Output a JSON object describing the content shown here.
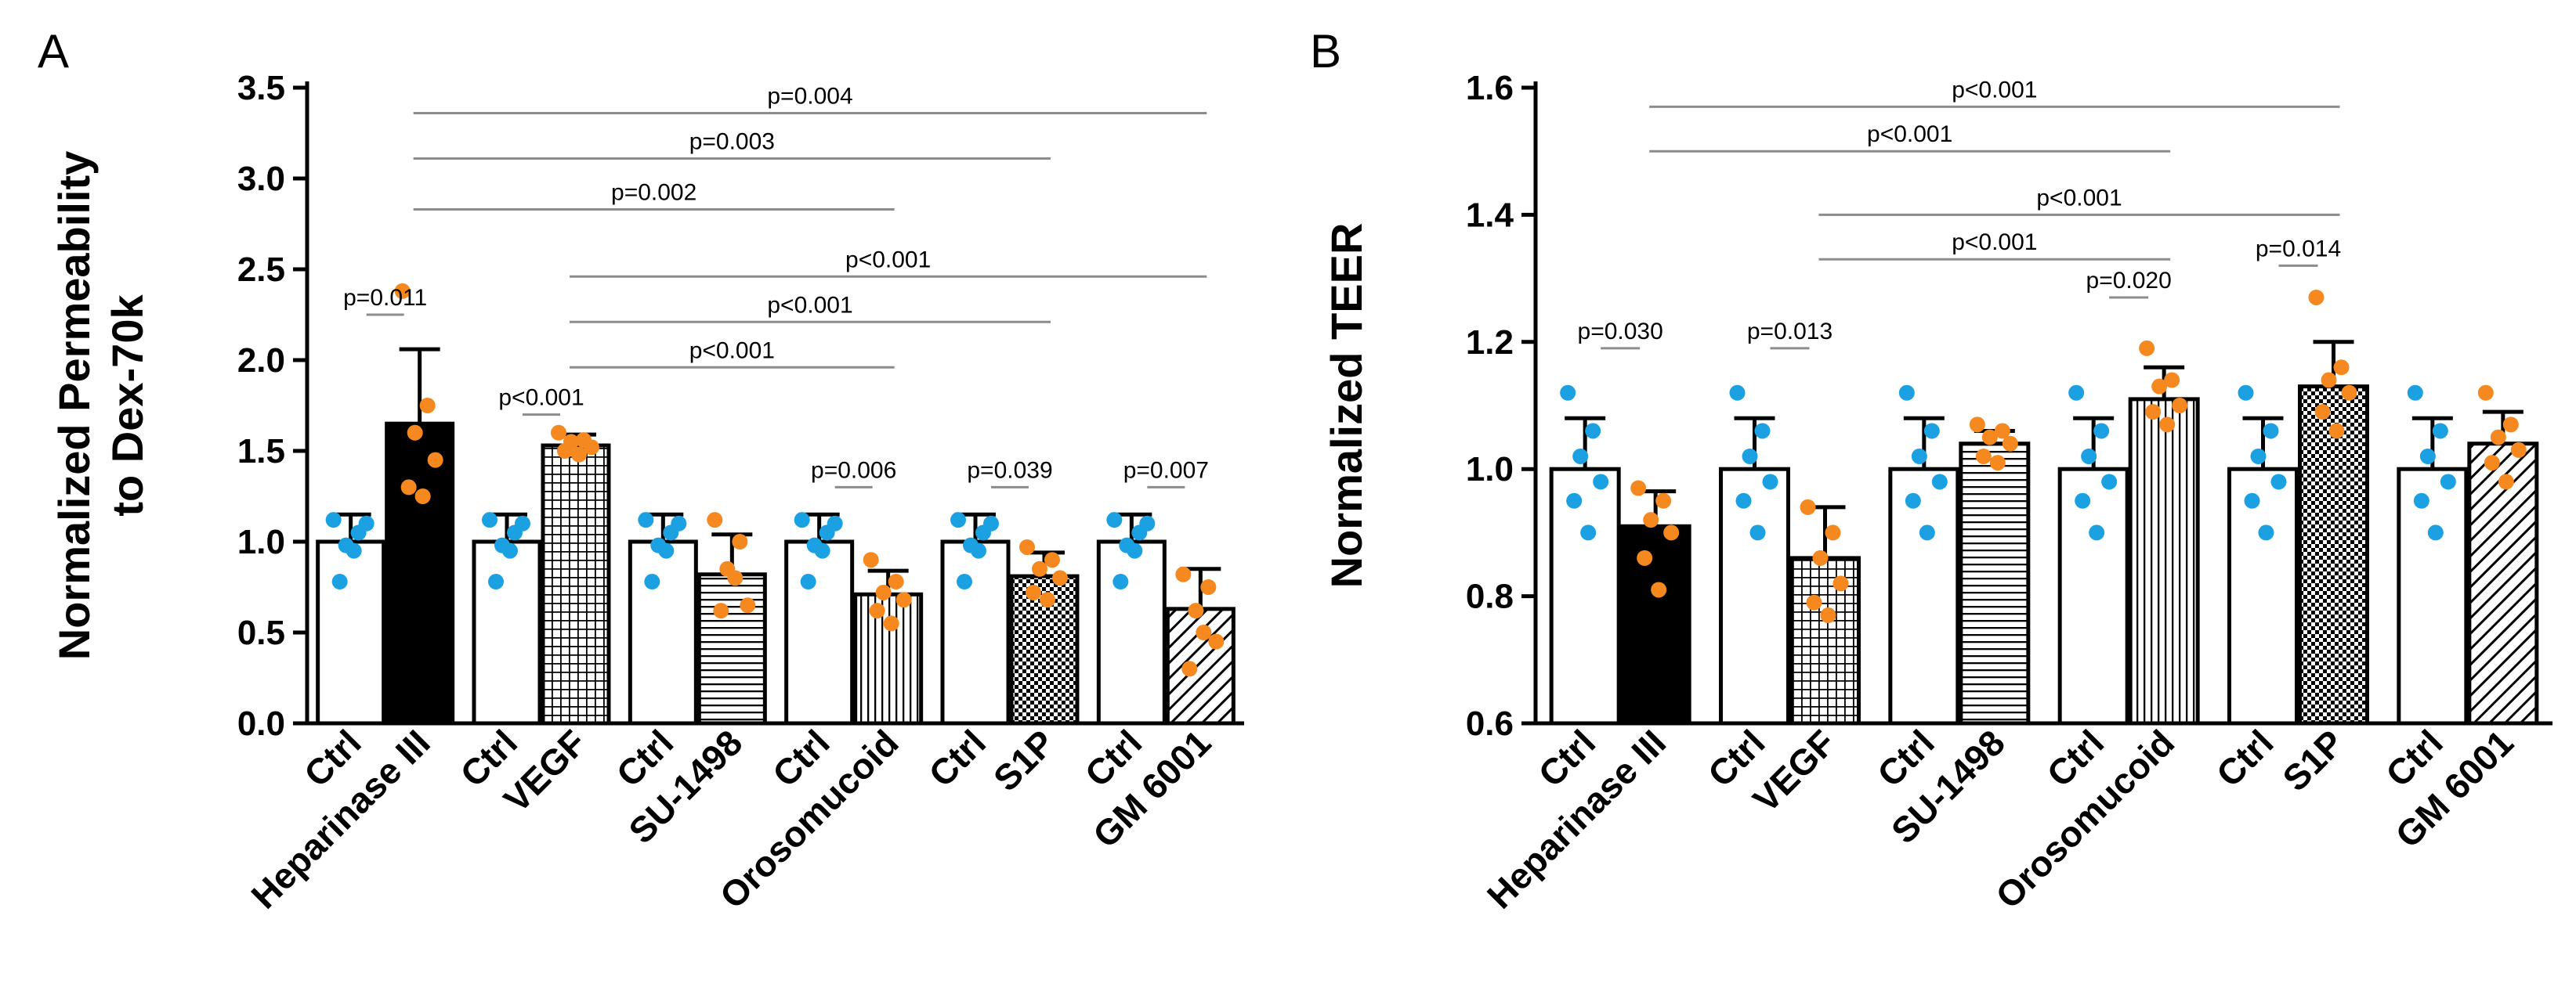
{
  "colors": {
    "ctrl_dot": "#1ba1e2",
    "treat_dot": "#f5891f",
    "bar_stroke": "#000000",
    "bracket": "#8c8c8c"
  },
  "chart_data": [
    {
      "panel": "A",
      "type": "bar",
      "ylabel_line1": "Normalized Permeability",
      "ylabel_line2": "to Dex-70k",
      "ylim": [
        0,
        3.5
      ],
      "yticks": [
        "0.0",
        "0.5",
        "1.0",
        "1.5",
        "2.0",
        "2.5",
        "3.0",
        "3.5"
      ],
      "groups": [
        {
          "ctrl_label": "Ctrl",
          "treat_label": "Heparinase III",
          "pattern": "solid",
          "ctrl_mean": 1.0,
          "ctrl_sd": 0.15,
          "treat_mean": 1.65,
          "treat_sd": 0.41,
          "ctrl_points": [
            1.12,
            1.05,
            0.98,
            1.1,
            0.78,
            0.95
          ],
          "treat_points": [
            2.38,
            1.75,
            1.6,
            1.45,
            1.3,
            1.25
          ],
          "p_label": "p=0.011",
          "p_y": 2.25
        },
        {
          "ctrl_label": "Ctrl",
          "treat_label": "VEGF",
          "pattern": "grid",
          "ctrl_mean": 1.0,
          "ctrl_sd": 0.15,
          "treat_mean": 1.53,
          "treat_sd": 0.06,
          "ctrl_points": [
            1.12,
            1.05,
            0.98,
            1.1,
            0.78,
            0.95
          ],
          "treat_points": [
            1.6,
            1.56,
            1.55,
            1.52,
            1.5,
            1.48
          ],
          "p_label": "p<0.001",
          "p_y": 1.7
        },
        {
          "ctrl_label": "Ctrl",
          "treat_label": "SU-1498",
          "pattern": "hlines",
          "ctrl_mean": 1.0,
          "ctrl_sd": 0.15,
          "treat_mean": 0.82,
          "treat_sd": 0.22,
          "ctrl_points": [
            1.12,
            1.05,
            0.98,
            1.1,
            0.78,
            0.95
          ],
          "treat_points": [
            1.12,
            1.0,
            0.85,
            0.65,
            0.62,
            0.8
          ],
          "p_label": "",
          "p_y": 0
        },
        {
          "ctrl_label": "Ctrl",
          "treat_label": "Orosomucoid",
          "pattern": "vlines",
          "ctrl_mean": 1.0,
          "ctrl_sd": 0.15,
          "treat_mean": 0.71,
          "treat_sd": 0.13,
          "ctrl_points": [
            1.12,
            1.05,
            0.98,
            1.1,
            0.78,
            0.95
          ],
          "treat_points": [
            0.9,
            0.78,
            0.72,
            0.68,
            0.62,
            0.55
          ],
          "p_label": "p=0.006",
          "p_y": 1.3
        },
        {
          "ctrl_label": "Ctrl",
          "treat_label": "S1P",
          "pattern": "checker",
          "ctrl_mean": 1.0,
          "ctrl_sd": 0.15,
          "treat_mean": 0.81,
          "treat_sd": 0.13,
          "ctrl_points": [
            1.12,
            1.05,
            0.98,
            1.1,
            0.78,
            0.95
          ],
          "treat_points": [
            0.97,
            0.9,
            0.85,
            0.8,
            0.72,
            0.68
          ],
          "p_label": "p=0.039",
          "p_y": 1.3
        },
        {
          "ctrl_label": "Ctrl",
          "treat_label": "GM 6001",
          "pattern": "diag",
          "ctrl_mean": 1.0,
          "ctrl_sd": 0.15,
          "treat_mean": 0.63,
          "treat_sd": 0.22,
          "ctrl_points": [
            1.12,
            1.05,
            0.98,
            1.1,
            0.78,
            0.95
          ],
          "treat_points": [
            0.82,
            0.75,
            0.62,
            0.45,
            0.3,
            0.5
          ],
          "p_label": "p=0.007",
          "p_y": 1.3
        }
      ],
      "long_brackets": [
        {
          "from_group": 0,
          "to_group": 5,
          "label": "p=0.004",
          "y": 3.36
        },
        {
          "from_group": 0,
          "to_group": 4,
          "label": "p=0.003",
          "y": 3.11
        },
        {
          "from_group": 0,
          "to_group": 3,
          "label": "p=0.002",
          "y": 2.83
        },
        {
          "from_group": 1,
          "to_group": 5,
          "label": "p<0.001",
          "y": 2.46
        },
        {
          "from_group": 1,
          "to_group": 4,
          "label": "p<0.001",
          "y": 2.21
        },
        {
          "from_group": 1,
          "to_group": 3,
          "label": "p<0.001",
          "y": 1.96
        }
      ]
    },
    {
      "panel": "B",
      "type": "bar",
      "ylabel_line1": "Normalized TEER",
      "ylabel_line2": "",
      "ylim": [
        0.6,
        1.6
      ],
      "yticks": [
        "0.6",
        "0.8",
        "1.0",
        "1.2",
        "1.4",
        "1.6"
      ],
      "groups": [
        {
          "ctrl_label": "Ctrl",
          "treat_label": "Heparinase III",
          "pattern": "solid",
          "ctrl_mean": 1.0,
          "ctrl_sd": 0.08,
          "treat_mean": 0.91,
          "treat_sd": 0.055,
          "ctrl_points": [
            1.12,
            1.06,
            1.02,
            0.98,
            0.95,
            0.9
          ],
          "treat_points": [
            0.97,
            0.95,
            0.92,
            0.9,
            0.86,
            0.81
          ],
          "p_label": "p=0.030",
          "p_y": 1.19
        },
        {
          "ctrl_label": "Ctrl",
          "treat_label": "VEGF",
          "pattern": "grid",
          "ctrl_mean": 1.0,
          "ctrl_sd": 0.08,
          "treat_mean": 0.86,
          "treat_sd": 0.08,
          "ctrl_points": [
            1.12,
            1.06,
            1.02,
            0.98,
            0.95,
            0.9
          ],
          "treat_points": [
            0.94,
            0.9,
            0.86,
            0.82,
            0.79,
            0.77
          ],
          "p_label": "p=0.013",
          "p_y": 1.19
        },
        {
          "ctrl_label": "Ctrl",
          "treat_label": "SU-1498",
          "pattern": "hlines",
          "ctrl_mean": 1.0,
          "ctrl_sd": 0.08,
          "treat_mean": 1.04,
          "treat_sd": 0.02,
          "ctrl_points": [
            1.12,
            1.06,
            1.02,
            0.98,
            0.95,
            0.9
          ],
          "treat_points": [
            1.07,
            1.06,
            1.05,
            1.04,
            1.02,
            1.01
          ],
          "p_label": "",
          "p_y": 0
        },
        {
          "ctrl_label": "Ctrl",
          "treat_label": "Orosomucoid",
          "pattern": "vlines",
          "ctrl_mean": 1.0,
          "ctrl_sd": 0.08,
          "treat_mean": 1.11,
          "treat_sd": 0.05,
          "ctrl_points": [
            1.12,
            1.06,
            1.02,
            0.98,
            0.95,
            0.9
          ],
          "treat_points": [
            1.19,
            1.14,
            1.13,
            1.1,
            1.09,
            1.07
          ],
          "p_label": "p=0.020",
          "p_y": 1.27
        },
        {
          "ctrl_label": "Ctrl",
          "treat_label": "S1P",
          "pattern": "checker",
          "ctrl_mean": 1.0,
          "ctrl_sd": 0.08,
          "treat_mean": 1.13,
          "treat_sd": 0.07,
          "ctrl_points": [
            1.12,
            1.06,
            1.02,
            0.98,
            0.95,
            0.9
          ],
          "treat_points": [
            1.27,
            1.16,
            1.14,
            1.12,
            1.09,
            1.06
          ],
          "p_label": "p=0.014",
          "p_y": 1.32
        },
        {
          "ctrl_label": "Ctrl",
          "treat_label": "GM 6001",
          "pattern": "diag",
          "ctrl_mean": 1.0,
          "ctrl_sd": 0.08,
          "treat_mean": 1.04,
          "treat_sd": 0.05,
          "ctrl_points": [
            1.12,
            1.06,
            1.02,
            0.98,
            0.95,
            0.9
          ],
          "treat_points": [
            1.12,
            1.07,
            1.05,
            1.03,
            1.01,
            0.98
          ],
          "p_label": "",
          "p_y": 0
        }
      ],
      "long_brackets": [
        {
          "from_group": 0,
          "to_group": 4,
          "label": "p<0.001",
          "y": 1.57
        },
        {
          "from_group": 0,
          "to_group": 3,
          "label": "p<0.001",
          "y": 1.5
        },
        {
          "from_group": 1,
          "to_group": 4,
          "label": "p<0.001",
          "y": 1.4
        },
        {
          "from_group": 1,
          "to_group": 3,
          "label": "p<0.001",
          "y": 1.33
        }
      ]
    }
  ]
}
